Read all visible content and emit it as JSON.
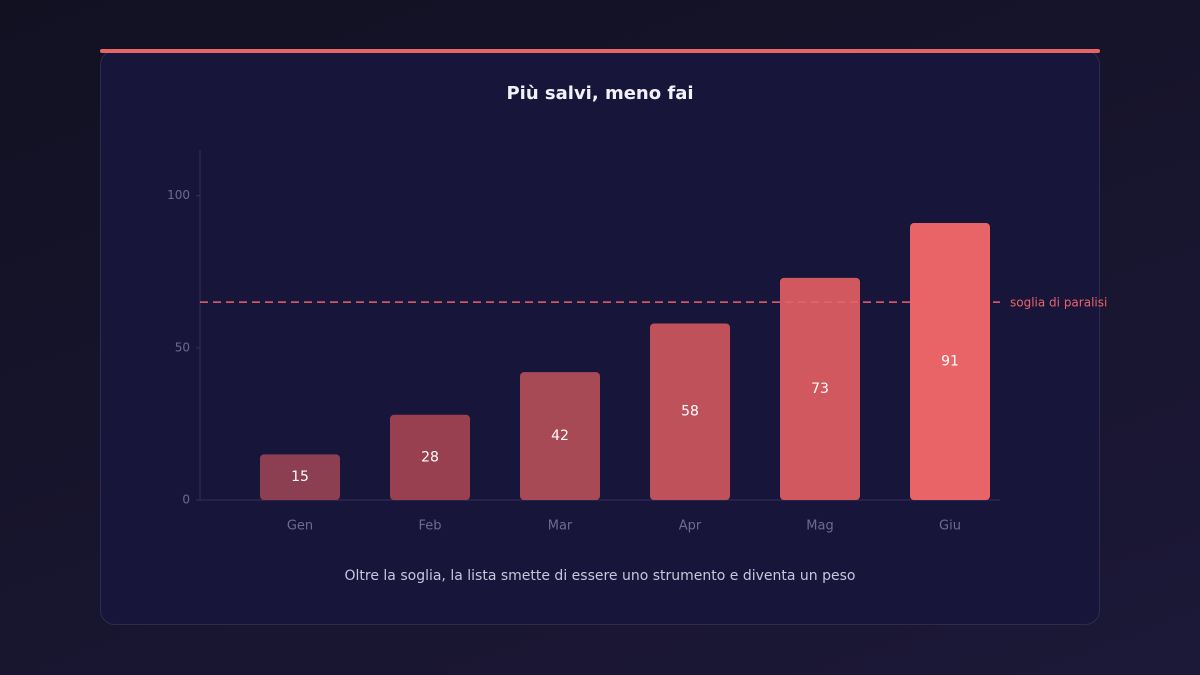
{
  "chart_data": {
    "type": "bar",
    "title": "Più salvi, meno fai",
    "categories": [
      "Gen",
      "Feb",
      "Mar",
      "Apr",
      "Mag",
      "Giu"
    ],
    "values": [
      15,
      28,
      42,
      58,
      73,
      91
    ],
    "colors": [
      "#8b3f50",
      "#983f50",
      "#a84a55",
      "#bf515b",
      "#d0585e",
      "#e86467"
    ],
    "ylim": [
      0,
      115
    ],
    "yticks": [
      0,
      50,
      100
    ],
    "threshold": {
      "value": 65,
      "label": "soglia di paralisi",
      "color": "#e86467"
    },
    "caption": "Oltre la soglia, la lista smette di essere uno strumento e diventa un peso"
  }
}
